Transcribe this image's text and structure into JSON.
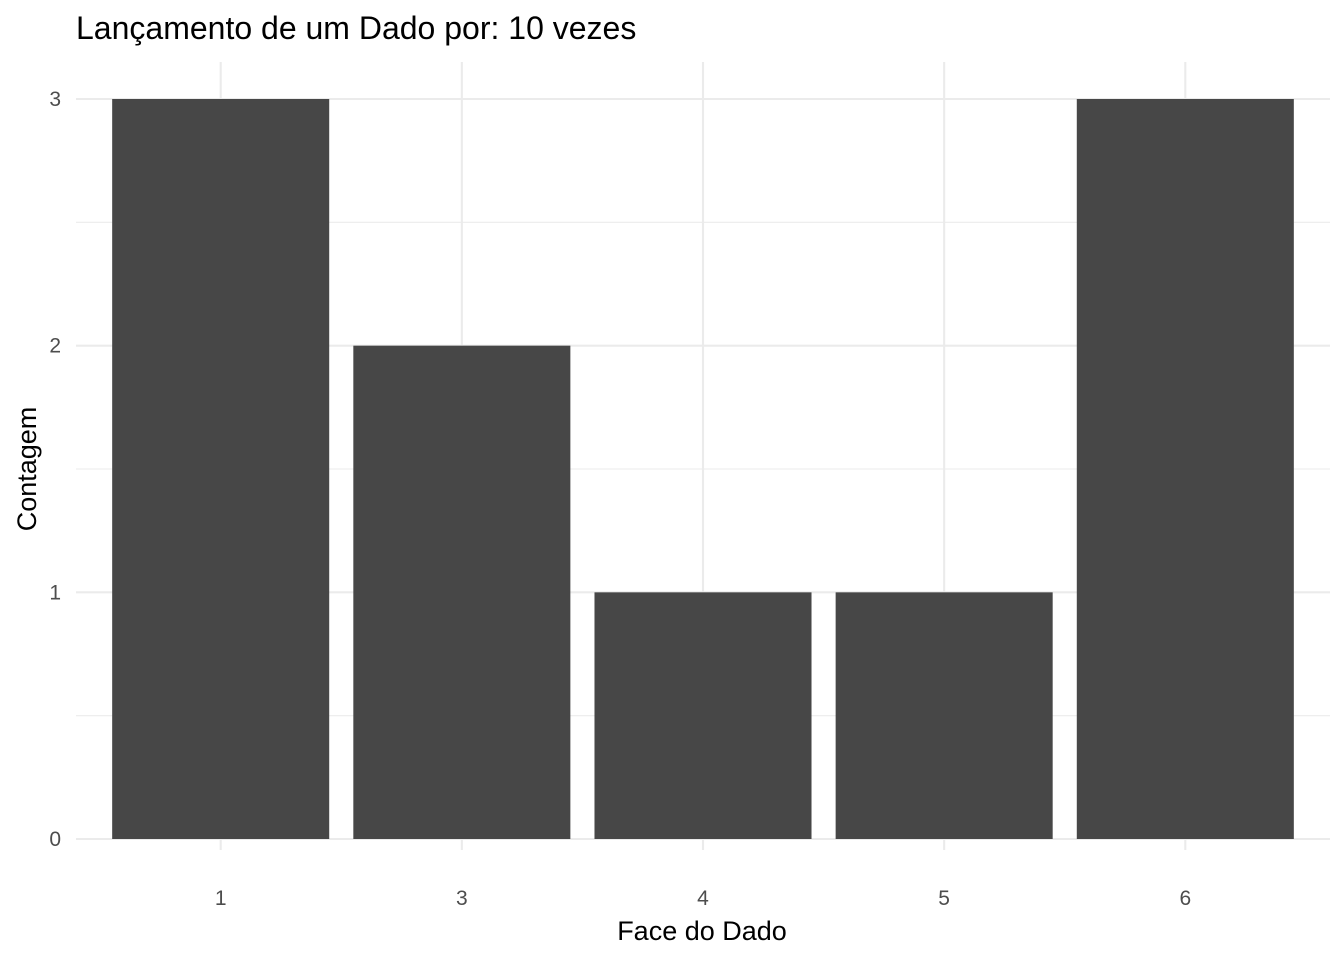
{
  "chart_data": {
    "type": "bar",
    "title": "Lançamento de um Dado por: 10 vezes",
    "xlabel": "Face do Dado",
    "ylabel": "Contagem",
    "categories": [
      "1",
      "3",
      "4",
      "5",
      "6"
    ],
    "values": [
      3,
      2,
      1,
      1,
      3
    ],
    "yticks": [
      0,
      1,
      2,
      3
    ],
    "ylim": [
      0,
      3
    ],
    "grid": true,
    "legend": "none",
    "bar_color": "#474747",
    "grid_color": "#ebebeb",
    "tick_color": "#4d4d4d"
  }
}
